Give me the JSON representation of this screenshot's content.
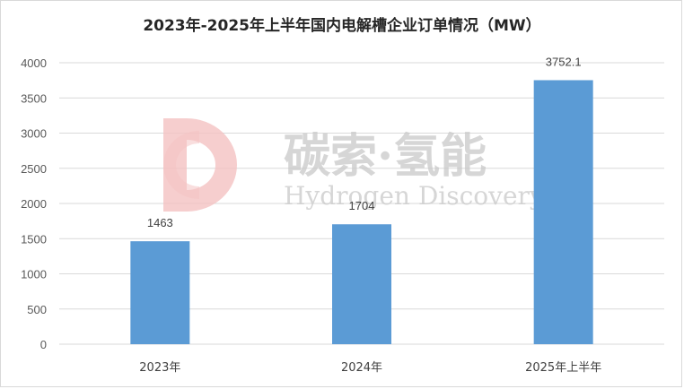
{
  "chart_data": {
    "type": "bar",
    "title": "2023年-2025年上半年国内电解槽企业订单情况（MW）",
    "xlabel": "",
    "ylabel": "",
    "categories": [
      "2023年",
      "2024年",
      "2025年上半年"
    ],
    "values": [
      1463,
      1704,
      3752.1
    ],
    "value_labels": [
      "1463",
      "1704",
      "3752.1"
    ],
    "ylim": [
      0,
      4000
    ],
    "yticks": [
      0,
      500,
      1000,
      1500,
      2000,
      2500,
      3000,
      3500,
      4000
    ],
    "grid": true,
    "legend": "none",
    "bar_color": "#5b9bd5",
    "grid_color": "#d9d9d9"
  },
  "watermark": {
    "text_cn": "碳索·氢能",
    "text_en": "Hydrogen Discovery",
    "logo_color": "#f4c2c2"
  }
}
